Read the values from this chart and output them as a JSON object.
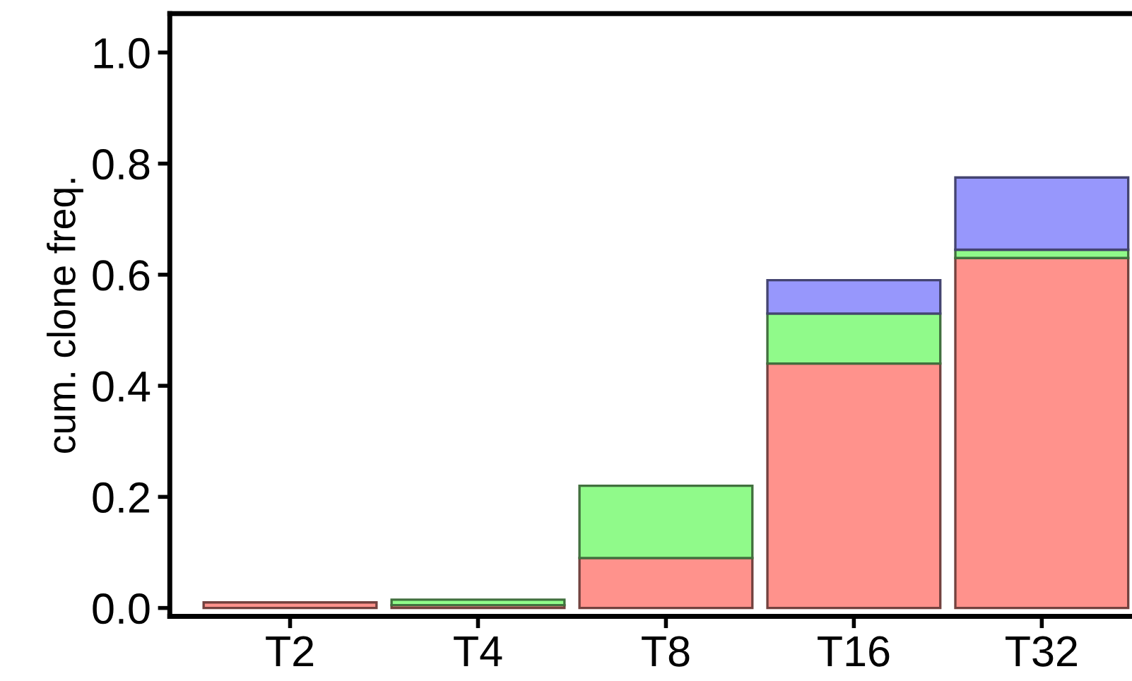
{
  "chart_data": {
    "type": "bar",
    "stacked": true,
    "ylabel": "cum. clone freq.",
    "categories": [
      "T2",
      "T4",
      "T8",
      "T16",
      "T32"
    ],
    "series": [
      {
        "color": "#ff928c",
        "values": [
          0.01,
          0.005,
          0.09,
          0.44,
          0.63
        ]
      },
      {
        "color": "#90fa8a",
        "values": [
          0,
          0.01,
          0.13,
          0.09,
          0.015
        ]
      },
      {
        "color": "#9797fc",
        "values": [
          0,
          0,
          0,
          0.06,
          0.13
        ]
      }
    ],
    "ylim": [
      -0.015,
      1.07
    ],
    "yticks": [
      {
        "value": 0,
        "label": "0.0"
      },
      {
        "value": 0.2,
        "label": "0.2"
      },
      {
        "value": 0.4,
        "label": "0.4"
      },
      {
        "value": 0.6,
        "label": "0.6"
      },
      {
        "value": 0.8,
        "label": "0.8"
      },
      {
        "value": 1,
        "label": "1.0"
      }
    ],
    "grid": false,
    "legend": false
  }
}
